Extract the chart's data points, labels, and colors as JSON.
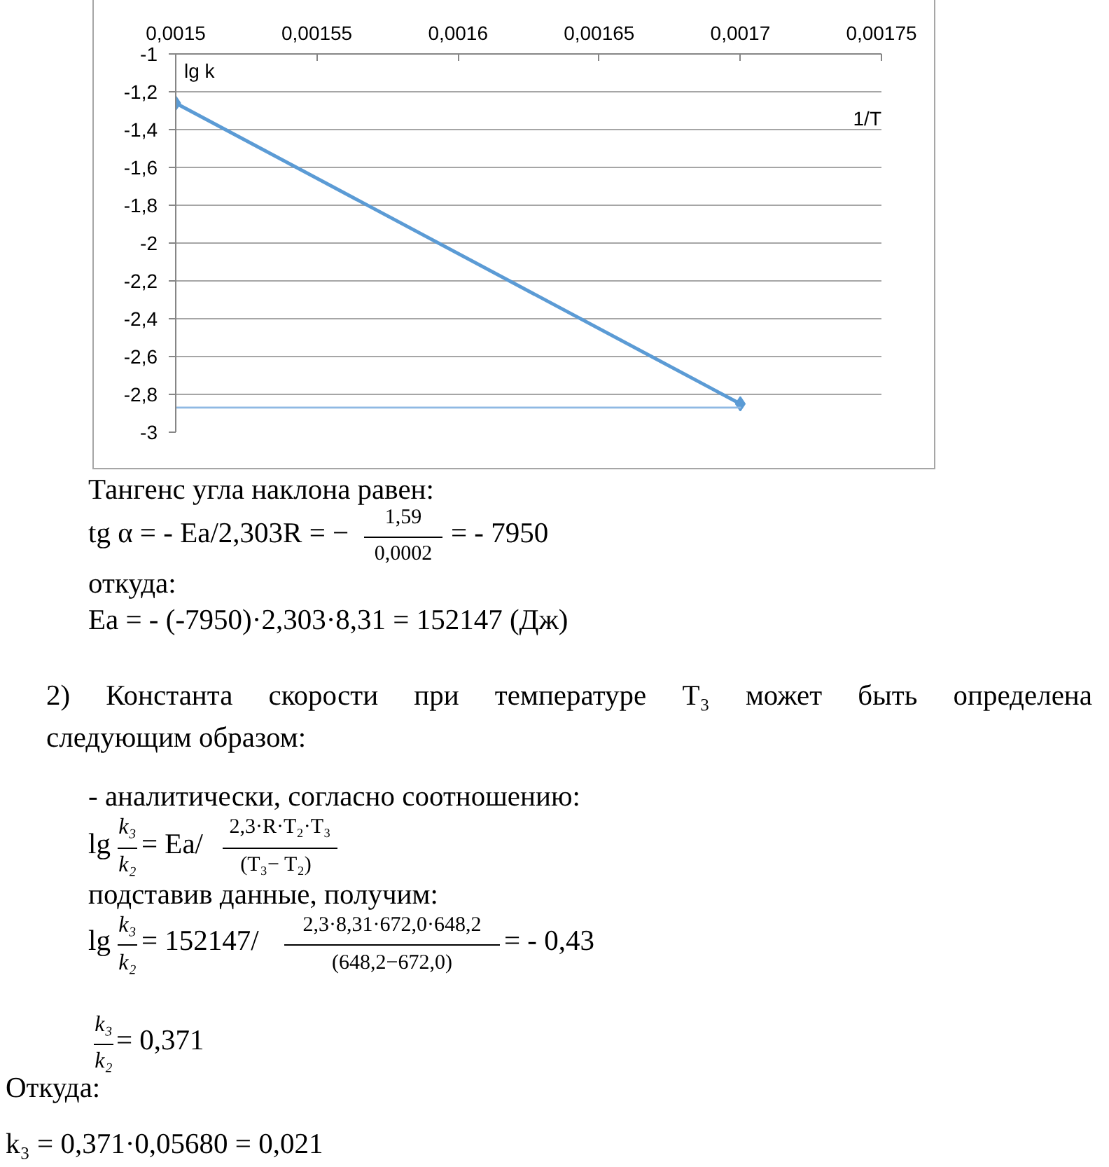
{
  "chart_data": {
    "type": "line",
    "xlabel": "1/T",
    "ylabel": "lg k",
    "x": [
      0.0015,
      0.0017
    ],
    "series": [
      {
        "color": "#5b9bd5",
        "values": [
          -1.26,
          -2.85
        ]
      },
      {
        "type": "line",
        "x": [
          0.0015,
          0.0017
        ],
        "color": "#8fb9e3",
        "values": [
          -2.87,
          -2.87
        ],
        "marker": "none"
      }
    ],
    "marker": "diamond",
    "xlim": [
      0.0015,
      0.00175
    ],
    "xticks": [
      {
        "value": 0.0015,
        "label": "0,0015"
      },
      {
        "value": 0.00155,
        "label": "0,00155"
      },
      {
        "value": 0.0016,
        "label": "0,0016"
      },
      {
        "value": 0.00165,
        "label": "0,00165"
      },
      {
        "value": 0.0017,
        "label": "0,0017"
      },
      {
        "value": 0.00175,
        "label": "0,00175"
      }
    ],
    "ylim": [
      -3,
      -1
    ],
    "yticks": [
      -1,
      {
        "value": -1.2,
        "label": "-1,2"
      },
      {
        "value": -1.4,
        "label": "-1,4"
      },
      {
        "value": -1.6,
        "label": "-1,6"
      },
      {
        "value": -1.8,
        "label": "-1,8"
      },
      -2,
      {
        "value": -2.2,
        "label": "-2,2"
      },
      {
        "value": -2.4,
        "label": "-2,4"
      },
      {
        "value": -2.6,
        "label": "-2,6"
      },
      {
        "value": -2.8,
        "label": "-2,8"
      },
      -3
    ],
    "grid": "y",
    "annotations": [
      "Тангенс угла наклона равен:",
      "tg α = - Ea/2,303R = −",
      "1,59",
      "0,0002",
      "= - 7950",
      "откуда:",
      "Ea = - (-7950)·2,303·8,31 = 152147 (Дж)",
      "2) Константа скорости при температуре T₃ может быть определена",
      "следующим образом:",
      "- аналитически, согласно соотношению:",
      "lg",
      "k₃",
      "k₂",
      "= Ea/",
      "2,3·R·T₂·T₃",
      "(T₃− T₂)",
      "подставив данные, получим:",
      "lg",
      "k₃",
      "k₂",
      "= 152147/",
      "2,3·8,31·672,0·648,2",
      "(648,2−672,0)",
      "= - 0,43",
      "k₃",
      "k₂",
      "= 0,371",
      "Откуда:",
      "k₃ = 0,371·0,05680 = 0,021"
    ]
  }
}
